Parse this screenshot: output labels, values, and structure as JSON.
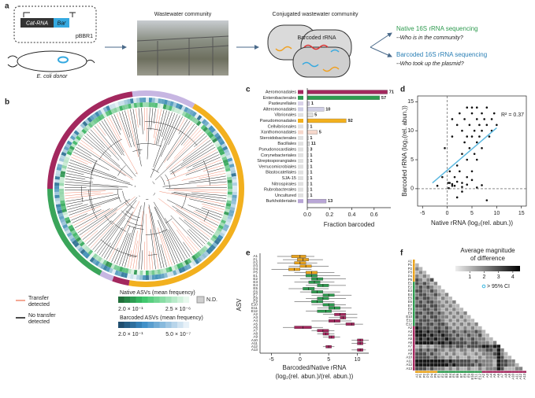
{
  "panels": [
    "a",
    "b",
    "c",
    "d",
    "e",
    "f"
  ],
  "schematic": {
    "plasmid_gene": "Cat-RNA",
    "plasmid_barcode": "Bar",
    "plasmid_name": "pBBR1",
    "donor": "E. coli donor",
    "step2": "Wastewater community",
    "step3": "Conjugated wastewater community",
    "barcoded_rrna": "Barcoded rRNA",
    "native_seq": "Native 16S rRNA sequencing",
    "native_question": "--Who is in the community?",
    "barcoded_seq": "Barcoded 16S rRNA sequencing",
    "barcoded_question": "--Who took up the plasmid?"
  },
  "tree_legend": {
    "transfer": [
      "Transfer",
      "detected"
    ],
    "no_transfer": [
      "No transfer",
      "detected"
    ],
    "native_title": "Native ASVs (mean frequency)",
    "native_high": "2.0 × 10⁻¹",
    "native_low": "2.5 × 10⁻⁶",
    "nd": "N.D.",
    "barcoded_title": "Barcoded ASVs (mean frequency)",
    "barcoded_high": "2.0 × 10⁻¹",
    "barcoded_low": "5.0 × 10⁻⁷"
  },
  "chart_data": [
    {
      "type": "barh",
      "xlabel": "Fraction barcoded",
      "categories": [
        "Aeromonadales",
        "Enterobacterales",
        "Pasteurellales",
        "Alteromonadales",
        "Vibrionales",
        "Pseudomonadales",
        "Cellvibrionales",
        "Xanthomonadales",
        "Steroidobacterales",
        "Bacillales",
        "Pseudonocardiales",
        "Corynebacteriales",
        "Streptosporangiales",
        "Verrucomicrobiales",
        "Blastocatellales",
        "SJA-15",
        "Nitrospirales",
        "Rubrobacterales",
        "Uncultured",
        "Burkholderiales"
      ],
      "values": [
        0.72,
        0.65,
        0.02,
        0.15,
        0.05,
        0.35,
        0.01,
        0.09,
        0.01,
        0.02,
        0.01,
        0.01,
        0.01,
        0.01,
        0.01,
        0.01,
        0.01,
        0.01,
        0.01,
        0.17
      ],
      "counts": [
        71,
        57,
        1,
        10,
        5,
        92,
        1,
        5,
        1,
        11,
        3,
        1,
        1,
        1,
        1,
        1,
        1,
        1,
        1,
        13
      ],
      "colors": [
        "#a3285e",
        "#2e9a4f",
        "#d9d2e9",
        "#d0cfe6",
        "#e0e0e0",
        "#f2b01e",
        "#e0e0e0",
        "#f6d8cc",
        "#e0e0e0",
        "#e0e0e0",
        "#e0e0e0",
        "#e0e0e0",
        "#e0e0e0",
        "#e0e0e0",
        "#e0e0e0",
        "#e0e0e0",
        "#e0e0e0",
        "#e0e0e0",
        "#e0e0e0",
        "#b9a6d6"
      ],
      "xlim": [
        0,
        0.75
      ],
      "xticks": [
        {
          "value": 0,
          "label": "0.0"
        },
        0.2,
        0.4,
        0.6
      ]
    },
    {
      "type": "scatter",
      "xlabel": "Native rRNA (log₂(rel. abun.))",
      "ylabel": "Barcoded rRNA (log₂(rel. abun.))",
      "annotation": "R² = 0.37",
      "color": "#111111",
      "x": [
        -2,
        -1,
        -0.5,
        0.2,
        0.5,
        1,
        1,
        1.5,
        2,
        2,
        2.5,
        2.5,
        3,
        3,
        3,
        3.5,
        3.5,
        4,
        4,
        4,
        4.5,
        4.5,
        5,
        5,
        5,
        5.5,
        5.5,
        6,
        6,
        6,
        6.5,
        6.5,
        7,
        7,
        7,
        7.5,
        8,
        8,
        8.5,
        9,
        9,
        9.5,
        10,
        0.5,
        1,
        1.5,
        2,
        3,
        4,
        5,
        6,
        7,
        2,
        3,
        4,
        5,
        6,
        8,
        1,
        0.3
      ],
      "y": [
        0.5,
        2,
        7,
        1,
        3,
        0.5,
        9,
        2,
        4,
        11,
        3,
        13,
        6,
        1,
        10,
        8,
        12,
        5,
        9,
        14,
        7,
        11,
        9,
        3,
        13,
        6,
        10,
        8,
        12,
        14,
        9,
        11,
        10,
        13,
        7,
        12,
        11,
        14,
        9,
        12,
        10,
        13,
        11,
        1,
        0.8,
        0.5,
        1.2,
        0.3,
        0.7,
        1.5,
        0.2,
        0.6,
        -1.5,
        -0.5,
        2,
        14,
        5,
        -2,
        12,
        0.1
      ],
      "trend": {
        "x": [
          -3,
          10
        ],
        "y": [
          1,
          10.5
        ],
        "color": "#5bb8e0"
      },
      "xlim": [
        -6,
        16
      ],
      "ylim": [
        -3,
        16
      ],
      "xticks": [
        -5,
        0,
        5,
        10,
        15
      ],
      "yticks": [
        0,
        5,
        10,
        15
      ]
    },
    {
      "type": "box",
      "ylabel": "ASV",
      "xlabel": [
        "Barcoded/Native rRNA",
        "(log₂(rel. abun.)/(rel. abun.))"
      ],
      "categories": [
        "A1",
        "P1",
        "P2",
        "P3",
        "P4",
        "P5",
        "E1",
        "E2",
        "E3",
        "E4",
        "E5",
        "E6",
        "E7",
        "E8",
        "E9",
        "E10",
        "E11",
        "E12",
        "A2",
        "A3",
        "A4",
        "A5",
        "A6",
        "A7",
        "A8",
        "A9",
        "A10",
        "A11",
        "A12",
        "A13"
      ],
      "boxes": [
        [
          -4,
          -1.5,
          0,
          1,
          2.5
        ],
        [
          -3,
          -0.5,
          0.5,
          1.5,
          4
        ],
        [
          -4,
          -1,
          0,
          1,
          3
        ],
        [
          -2,
          0,
          1,
          2,
          5
        ],
        [
          -5,
          -2,
          -1,
          0,
          2
        ],
        [
          -1,
          1,
          2,
          3,
          6
        ],
        [
          -3,
          1,
          2,
          3,
          7
        ],
        [
          0,
          2,
          3,
          4,
          8
        ],
        [
          -1,
          1.5,
          2.5,
          3.5,
          6
        ],
        [
          1,
          3,
          4,
          5,
          8
        ],
        [
          -2,
          0.5,
          1.5,
          2.5,
          5
        ],
        [
          0,
          2,
          3,
          4,
          7
        ],
        [
          2,
          4,
          5,
          6,
          9
        ],
        [
          1,
          3,
          4,
          5,
          8
        ],
        [
          -1,
          2,
          3,
          4,
          6
        ],
        [
          2,
          4,
          5,
          6,
          8
        ],
        [
          3,
          5,
          6,
          7,
          9
        ],
        [
          1,
          3,
          4.5,
          5.5,
          8
        ],
        [
          4,
          6,
          7,
          8,
          10
        ],
        [
          5,
          7,
          7.5,
          8,
          10
        ],
        [
          2,
          5,
          6,
          7,
          9
        ],
        [
          6,
          8,
          9,
          9.5,
          11
        ],
        [
          -3,
          -1,
          0.5,
          2,
          4
        ],
        [
          2,
          3,
          4,
          5,
          6
        ],
        [
          3,
          4,
          4.5,
          5,
          6
        ],
        [
          4,
          5,
          5.5,
          6,
          7
        ],
        [
          9,
          10,
          10.5,
          11,
          12
        ],
        [
          9,
          10,
          10.5,
          11,
          11.5
        ],
        [
          4,
          4.5,
          5,
          5.5,
          6
        ],
        [
          9,
          10,
          10.5,
          11,
          11.5
        ]
      ],
      "colors": [
        "#e8a21c",
        "#e8a21c",
        "#e8a21c",
        "#e8a21c",
        "#e8a21c",
        "#e8a21c",
        "#2e9a4f",
        "#2e9a4f",
        "#2e9a4f",
        "#2e9a4f",
        "#2e9a4f",
        "#2e9a4f",
        "#2e9a4f",
        "#2e9a4f",
        "#2e9a4f",
        "#2e9a4f",
        "#2e9a4f",
        "#2e9a4f",
        "#a3285e",
        "#a3285e",
        "#a3285e",
        "#a3285e",
        "#a3285e",
        "#a3285e",
        "#a3285e",
        "#a3285e",
        "#a3285e",
        "#a3285e",
        "#a3285e",
        "#a3285e"
      ],
      "xlim": [
        -7,
        12
      ],
      "xticks": [
        -5,
        0,
        5,
        10
      ]
    },
    {
      "type": "heatmap",
      "colorbar_title": [
        "Average magnitude",
        "of difference"
      ],
      "colorbar_lim": [
        0,
        4.5
      ],
      "colorbar_ticks": [
        1,
        2,
        3,
        4
      ],
      "significance": "> 95% CI",
      "significance_color": "#3bb7e0",
      "labels": [
        "A1",
        "P1",
        "P2",
        "P3",
        "P4",
        "P5",
        "E1",
        "E2",
        "E3",
        "E4",
        "E5",
        "E6",
        "E7",
        "E8",
        "E9",
        "E10",
        "E11",
        "E12",
        "A2",
        "A3",
        "A4",
        "A5",
        "A6",
        "A7",
        "A8",
        "A9",
        "A10",
        "A11",
        "A12",
        "A13"
      ],
      "matrix": [
        [
          1
        ],
        [
          2,
          1
        ],
        [
          1,
          2,
          1
        ],
        [
          2,
          1,
          2,
          1
        ],
        [
          3,
          2,
          1,
          2,
          3
        ],
        [
          3,
          2,
          3,
          2,
          1,
          2
        ],
        [
          2,
          3,
          2,
          3,
          2,
          1,
          1
        ],
        [
          3,
          3,
          2,
          2,
          3,
          2,
          1,
          1
        ],
        [
          2,
          3,
          3,
          2,
          2,
          3,
          2,
          1,
          2
        ],
        [
          3,
          2,
          3,
          3,
          2,
          2,
          1,
          2,
          1,
          1
        ],
        [
          2,
          3,
          2,
          3,
          3,
          2,
          2,
          1,
          2,
          1,
          2
        ],
        [
          3,
          3,
          3,
          2,
          3,
          3,
          2,
          2,
          1,
          2,
          1,
          1
        ],
        [
          2,
          2,
          3,
          3,
          2,
          3,
          2,
          1,
          2,
          1,
          2,
          1,
          1
        ],
        [
          3,
          3,
          2,
          3,
          3,
          2,
          3,
          2,
          1,
          2,
          1,
          2,
          1,
          2
        ],
        [
          3,
          2,
          3,
          2,
          3,
          3,
          2,
          2,
          2,
          1,
          2,
          1,
          2,
          1,
          1
        ],
        [
          2,
          3,
          3,
          3,
          2,
          3,
          3,
          2,
          1,
          2,
          1,
          2,
          1,
          2,
          1,
          1
        ],
        [
          3,
          3,
          2,
          3,
          3,
          2,
          3,
          3,
          2,
          1,
          2,
          1,
          2,
          1,
          2,
          1,
          2
        ],
        [
          4,
          3,
          3,
          3,
          2,
          3,
          3,
          2,
          3,
          2,
          1,
          2,
          1,
          2,
          1,
          2,
          1,
          1
        ],
        [
          4,
          4,
          3,
          4,
          3,
          3,
          4,
          3,
          3,
          2,
          3,
          2,
          2,
          3,
          2,
          2,
          3,
          2,
          1
        ],
        [
          4,
          4,
          4,
          3,
          4,
          3,
          3,
          4,
          3,
          3,
          2,
          3,
          2,
          2,
          3,
          2,
          2,
          3,
          1,
          1
        ],
        [
          3,
          4,
          3,
          4,
          3,
          4,
          3,
          3,
          4,
          3,
          3,
          2,
          3,
          2,
          2,
          3,
          2,
          2,
          2,
          1,
          1
        ],
        [
          4,
          4,
          4,
          4,
          4,
          3,
          4,
          4,
          3,
          4,
          3,
          3,
          3,
          3,
          2,
          3,
          3,
          2,
          2,
          2,
          1,
          2
        ],
        [
          1,
          2,
          1,
          2,
          1,
          2,
          2,
          3,
          2,
          3,
          2,
          3,
          3,
          2,
          3,
          3,
          3,
          3,
          4,
          4,
          3,
          4,
          4
        ],
        [
          2,
          3,
          2,
          3,
          2,
          3,
          2,
          2,
          1,
          2,
          2,
          1,
          2,
          2,
          1,
          2,
          1,
          2,
          2,
          3,
          3,
          2,
          4,
          2
        ],
        [
          3,
          3,
          3,
          2,
          3,
          2,
          2,
          1,
          2,
          1,
          2,
          1,
          1,
          2,
          1,
          1,
          2,
          1,
          2,
          2,
          2,
          3,
          4,
          2,
          1
        ],
        [
          3,
          3,
          3,
          3,
          2,
          3,
          2,
          2,
          1,
          2,
          1,
          2,
          1,
          1,
          2,
          1,
          1,
          2,
          1,
          2,
          2,
          2,
          4,
          3,
          1,
          1
        ],
        [
          4,
          4,
          4,
          4,
          4,
          4,
          4,
          4,
          3,
          4,
          3,
          3,
          3,
          3,
          3,
          2,
          3,
          2,
          2,
          2,
          2,
          1,
          4,
          3,
          3,
          2,
          2
        ],
        [
          4,
          4,
          4,
          4,
          4,
          4,
          4,
          4,
          4,
          3,
          4,
          3,
          3,
          3,
          3,
          3,
          2,
          3,
          2,
          2,
          2,
          1,
          4,
          3,
          3,
          2,
          2,
          1
        ],
        [
          3,
          3,
          3,
          2,
          3,
          2,
          2,
          2,
          1,
          2,
          1,
          2,
          1,
          1,
          2,
          1,
          1,
          2,
          1,
          2,
          2,
          2,
          4,
          3,
          1,
          1,
          1,
          2,
          2
        ]
      ]
    }
  ]
}
